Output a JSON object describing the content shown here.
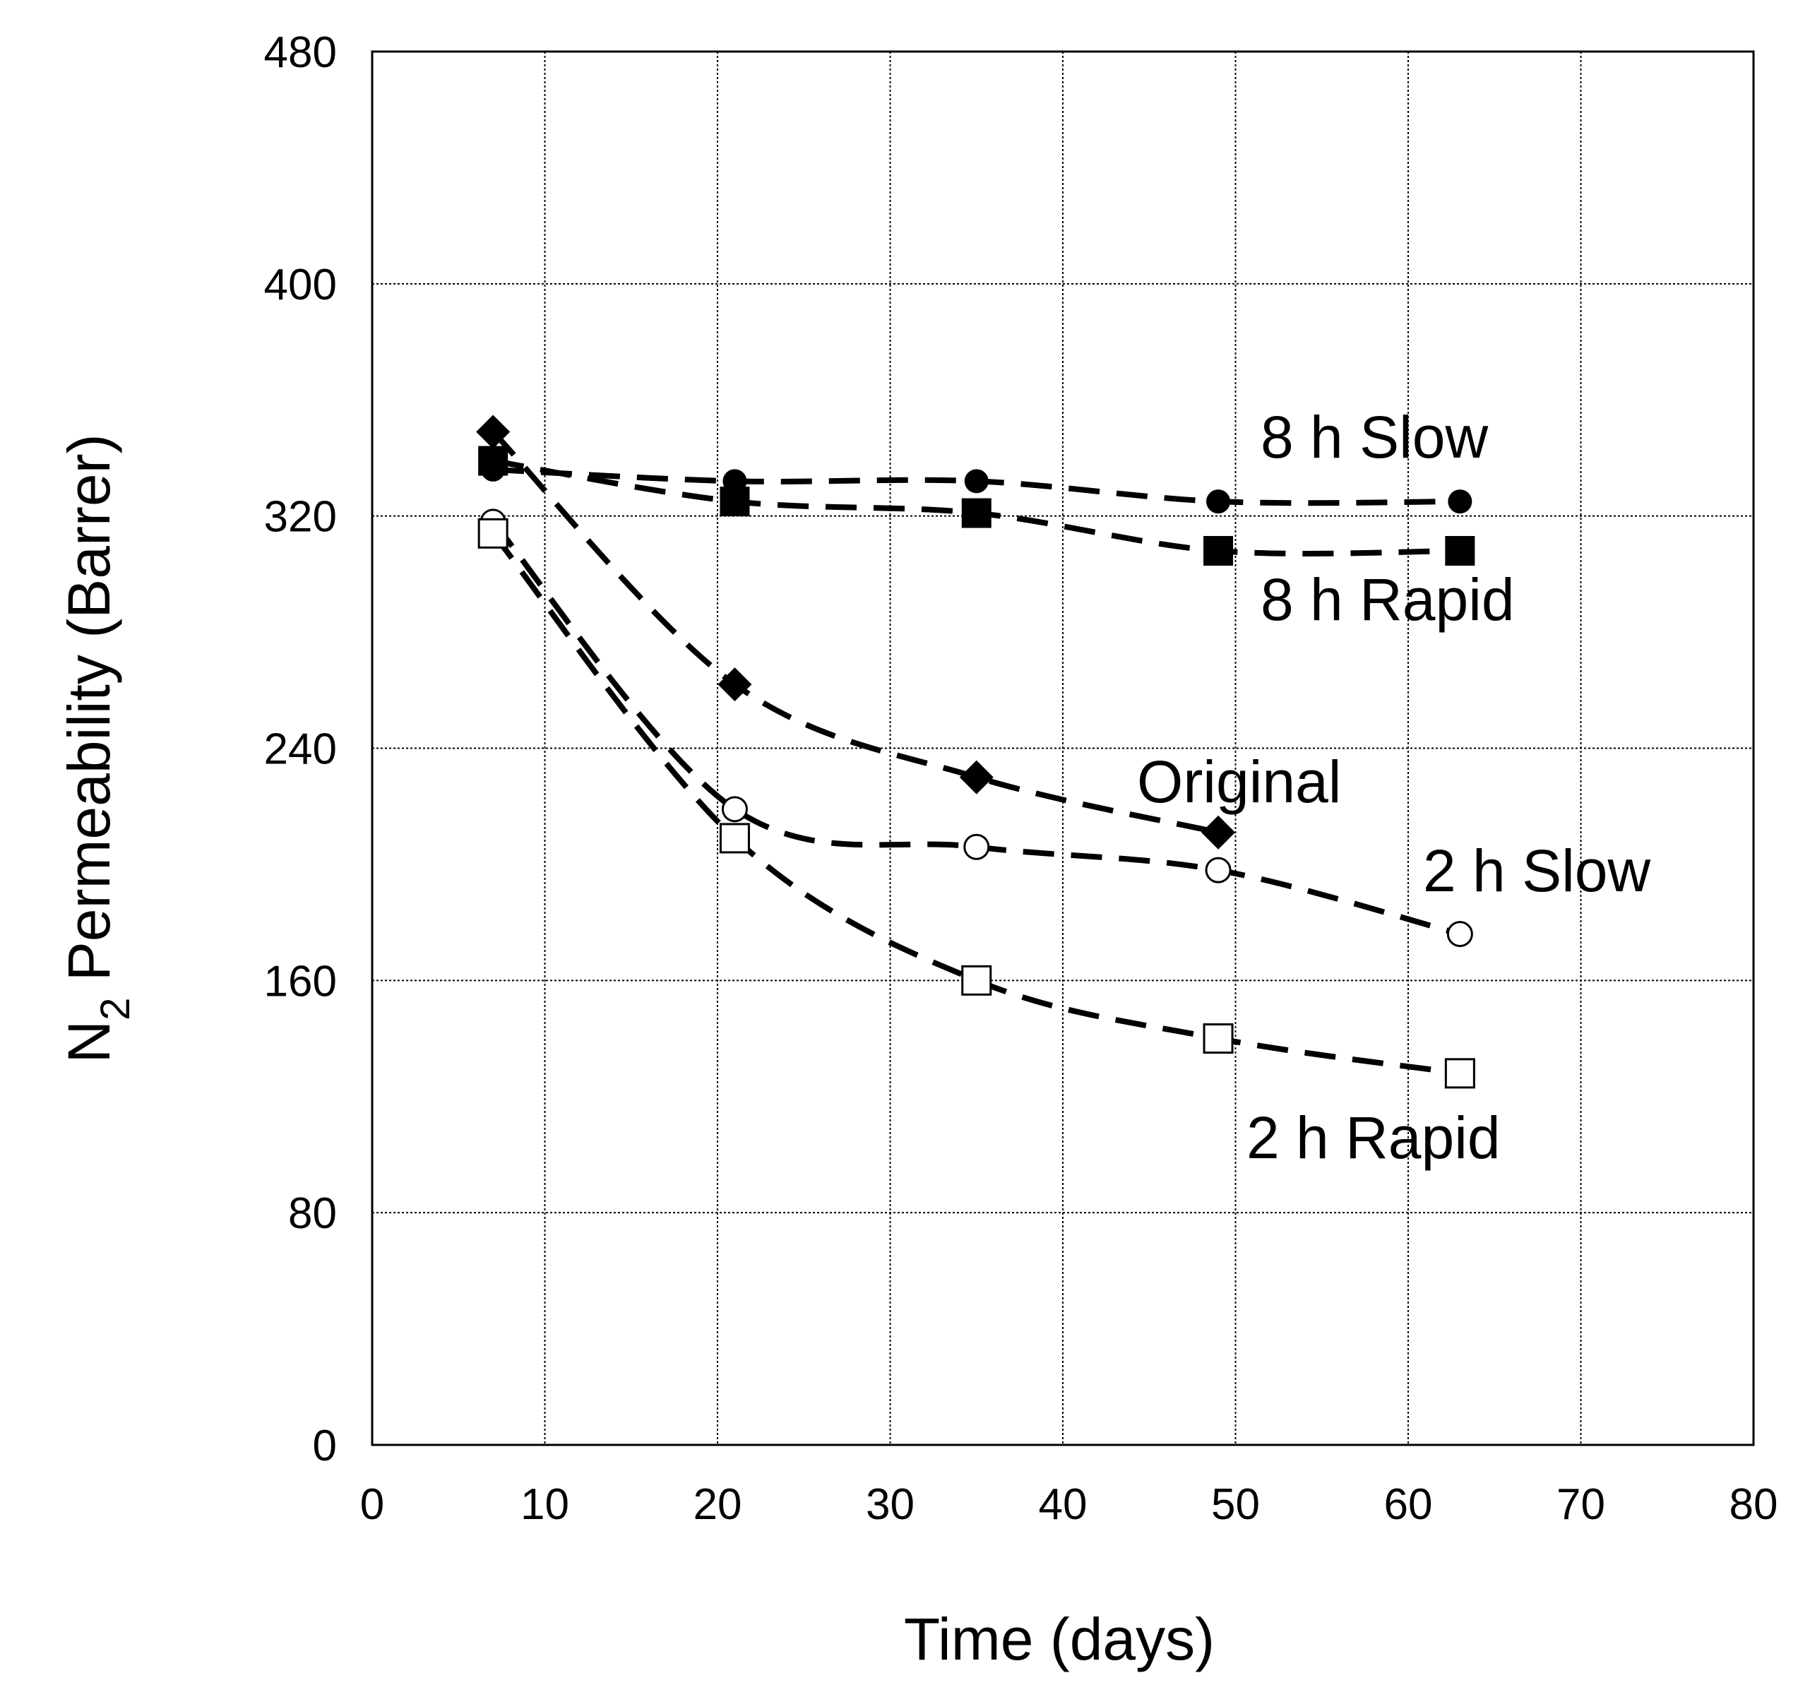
{
  "chart_data": {
    "type": "scatter",
    "title": "",
    "xlabel": "Time (days)",
    "ylabel": {
      "main": "N",
      "subscript": "2",
      "rest": " Permeability (Barrer)"
    },
    "xlim": [
      0,
      80
    ],
    "ylim": [
      0,
      480
    ],
    "xticks": [
      0,
      10,
      20,
      30,
      40,
      50,
      60,
      70,
      80
    ],
    "yticks": [
      0,
      80,
      160,
      240,
      320,
      400,
      480
    ],
    "grid": true,
    "series": [
      {
        "name": "8 h Slow",
        "marker": "filled-circle",
        "x": [
          7,
          21,
          35,
          49,
          63
        ],
        "y": [
          336,
          332,
          332,
          325,
          325
        ]
      },
      {
        "name": "8 h Rapid",
        "marker": "filled-square",
        "x": [
          7,
          21,
          35,
          49,
          63
        ],
        "y": [
          339,
          325,
          321,
          308,
          308
        ]
      },
      {
        "name": "Original",
        "marker": "filled-diamond",
        "x": [
          7,
          21,
          35,
          49
        ],
        "y": [
          349,
          262,
          230,
          211
        ]
      },
      {
        "name": "2 h Slow",
        "marker": "open-circle",
        "x": [
          7,
          21,
          35,
          49,
          63
        ],
        "y": [
          318,
          219,
          206,
          198,
          176
        ]
      },
      {
        "name": "2 h Rapid",
        "marker": "open-square",
        "x": [
          7,
          21,
          35,
          49,
          63
        ],
        "y": [
          314,
          209,
          160,
          140,
          128
        ]
      }
    ],
    "annotations": [
      {
        "text": "8 h Slow",
        "series": "8 h Slow"
      },
      {
        "text": "8 h Rapid",
        "series": "8 h Rapid"
      },
      {
        "text": "Original",
        "series": "Original"
      },
      {
        "text": "2 h Slow",
        "series": "2 h Slow"
      },
      {
        "text": "2 h Rapid",
        "series": "2 h Rapid"
      }
    ]
  }
}
